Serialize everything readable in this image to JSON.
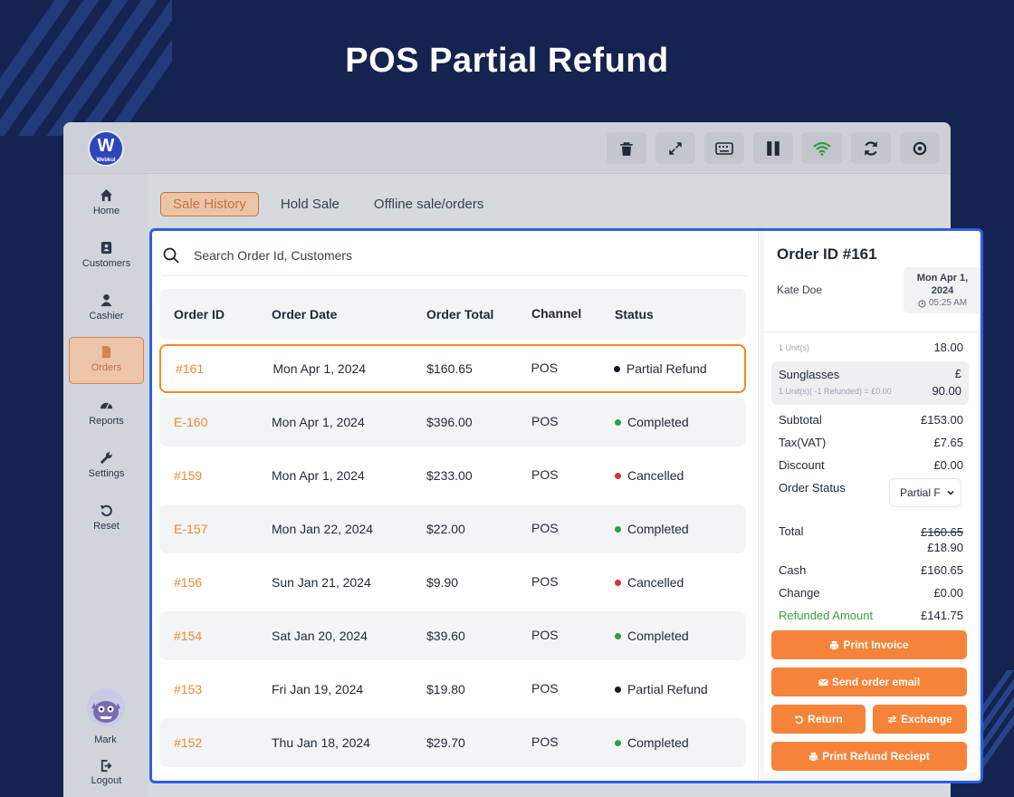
{
  "hero": {
    "title": "POS Partial Refund"
  },
  "app": {
    "logo": {
      "letter": "W",
      "text": "Webkul"
    },
    "toolbar": [
      {
        "name": "trash-icon",
        "color": "#1f2937"
      },
      {
        "name": "expand-icon",
        "color": "#1f2937"
      },
      {
        "name": "keyboard-icon",
        "color": "#1f2937"
      },
      {
        "name": "pause-icon",
        "color": "#1f2937"
      },
      {
        "name": "wifi-icon",
        "color": "#2f9e44"
      },
      {
        "name": "sync-icon",
        "color": "#1f2937"
      },
      {
        "name": "settings-icon",
        "color": "#1f2937"
      }
    ],
    "sidebar": {
      "items": [
        {
          "label": "Home",
          "icon": "home-icon"
        },
        {
          "label": "Customers",
          "icon": "contacts-icon"
        },
        {
          "label": "Cashier",
          "icon": "user-icon"
        },
        {
          "label": "Orders",
          "icon": "file-icon",
          "active": true
        },
        {
          "label": "Reports",
          "icon": "dashboard-icon"
        },
        {
          "label": "Settings",
          "icon": "wrench-icon"
        },
        {
          "label": "Reset",
          "icon": "undo-icon"
        }
      ],
      "user": {
        "name": "Mark"
      },
      "logout": {
        "label": "Logout"
      }
    },
    "tabs": [
      {
        "label": "Sale History",
        "active": true
      },
      {
        "label": "Hold Sale"
      },
      {
        "label": "Offline sale/orders"
      }
    ]
  },
  "modal": {
    "search": {
      "placeholder": "Search Order Id, Customers"
    },
    "table": {
      "headers": [
        "Order ID",
        "Order Date",
        "Order Total",
        "Channel",
        "Status"
      ],
      "rows": [
        {
          "id": "#161",
          "date": "Mon Apr 1, 2024",
          "total": "$160.65",
          "channel": "POS",
          "status": "Partial Refund",
          "status_color": "#111827"
        },
        {
          "id": "E-160",
          "date": "Mon Apr 1, 2024",
          "total": "$396.00",
          "channel": "POS",
          "status": "Completed",
          "status_color": "#2f9e44"
        },
        {
          "id": "#159",
          "date": "Mon Apr 1, 2024",
          "total": "$233.00",
          "channel": "POS",
          "status": "Cancelled",
          "status_color": "#e03131"
        },
        {
          "id": "E-157",
          "date": "Mon Jan 22, 2024",
          "total": "$22.00",
          "channel": "POS",
          "status": "Completed",
          "status_color": "#2f9e44"
        },
        {
          "id": "#156",
          "date": "Sun Jan 21, 2024",
          "total": "$9.90",
          "channel": "POS",
          "status": "Cancelled",
          "status_color": "#e03131"
        },
        {
          "id": "#154",
          "date": "Sat Jan 20, 2024",
          "total": "$39.60",
          "channel": "POS",
          "status": "Completed",
          "status_color": "#2f9e44"
        },
        {
          "id": "#153",
          "date": "Fri Jan 19, 2024",
          "total": "$19.80",
          "channel": "POS",
          "status": "Partial Refund",
          "status_color": "#111827"
        },
        {
          "id": "#152",
          "date": "Thu Jan 18, 2024",
          "total": "$29.70",
          "channel": "POS",
          "status": "Completed",
          "status_color": "#2f9e44"
        }
      ]
    },
    "detail": {
      "title": "Order ID #161",
      "customer": "Kate Doe",
      "date_line1": "Mon Apr 1,",
      "date_line2": "2024",
      "time": "05:25 AM",
      "prev_item": {
        "units": "1 Unit(s)",
        "amount": "18.00"
      },
      "item": {
        "name": "Sunglasses",
        "sub": "1 Unit(s)( -1 Refunded) = £0.00",
        "currency": "£",
        "amount": "90.00"
      },
      "subtotal": {
        "label": "Subtotal",
        "value": "£153.00"
      },
      "tax": {
        "label": "Tax(VAT)",
        "value": "£7.65"
      },
      "discount": {
        "label": "Discount",
        "value": "£0.00"
      },
      "order_status": {
        "label": "Order Status",
        "value": "Partial F"
      },
      "total": {
        "label": "Total",
        "old": "£160.65",
        "new": "£18.90"
      },
      "cash": {
        "label": "Cash",
        "value": "£160.65"
      },
      "change": {
        "label": "Change",
        "value": "£0.00"
      },
      "refunded": {
        "label": "Refunded Amount",
        "value": "£141.75",
        "color": "#3aa33a"
      },
      "buttons": {
        "print_invoice": "Print Invoice",
        "send_email": "Send order email",
        "return": "Return",
        "exchange": "Exchange",
        "print_refund": "Print Refund Reciept"
      },
      "accent": "#f6833a"
    }
  }
}
